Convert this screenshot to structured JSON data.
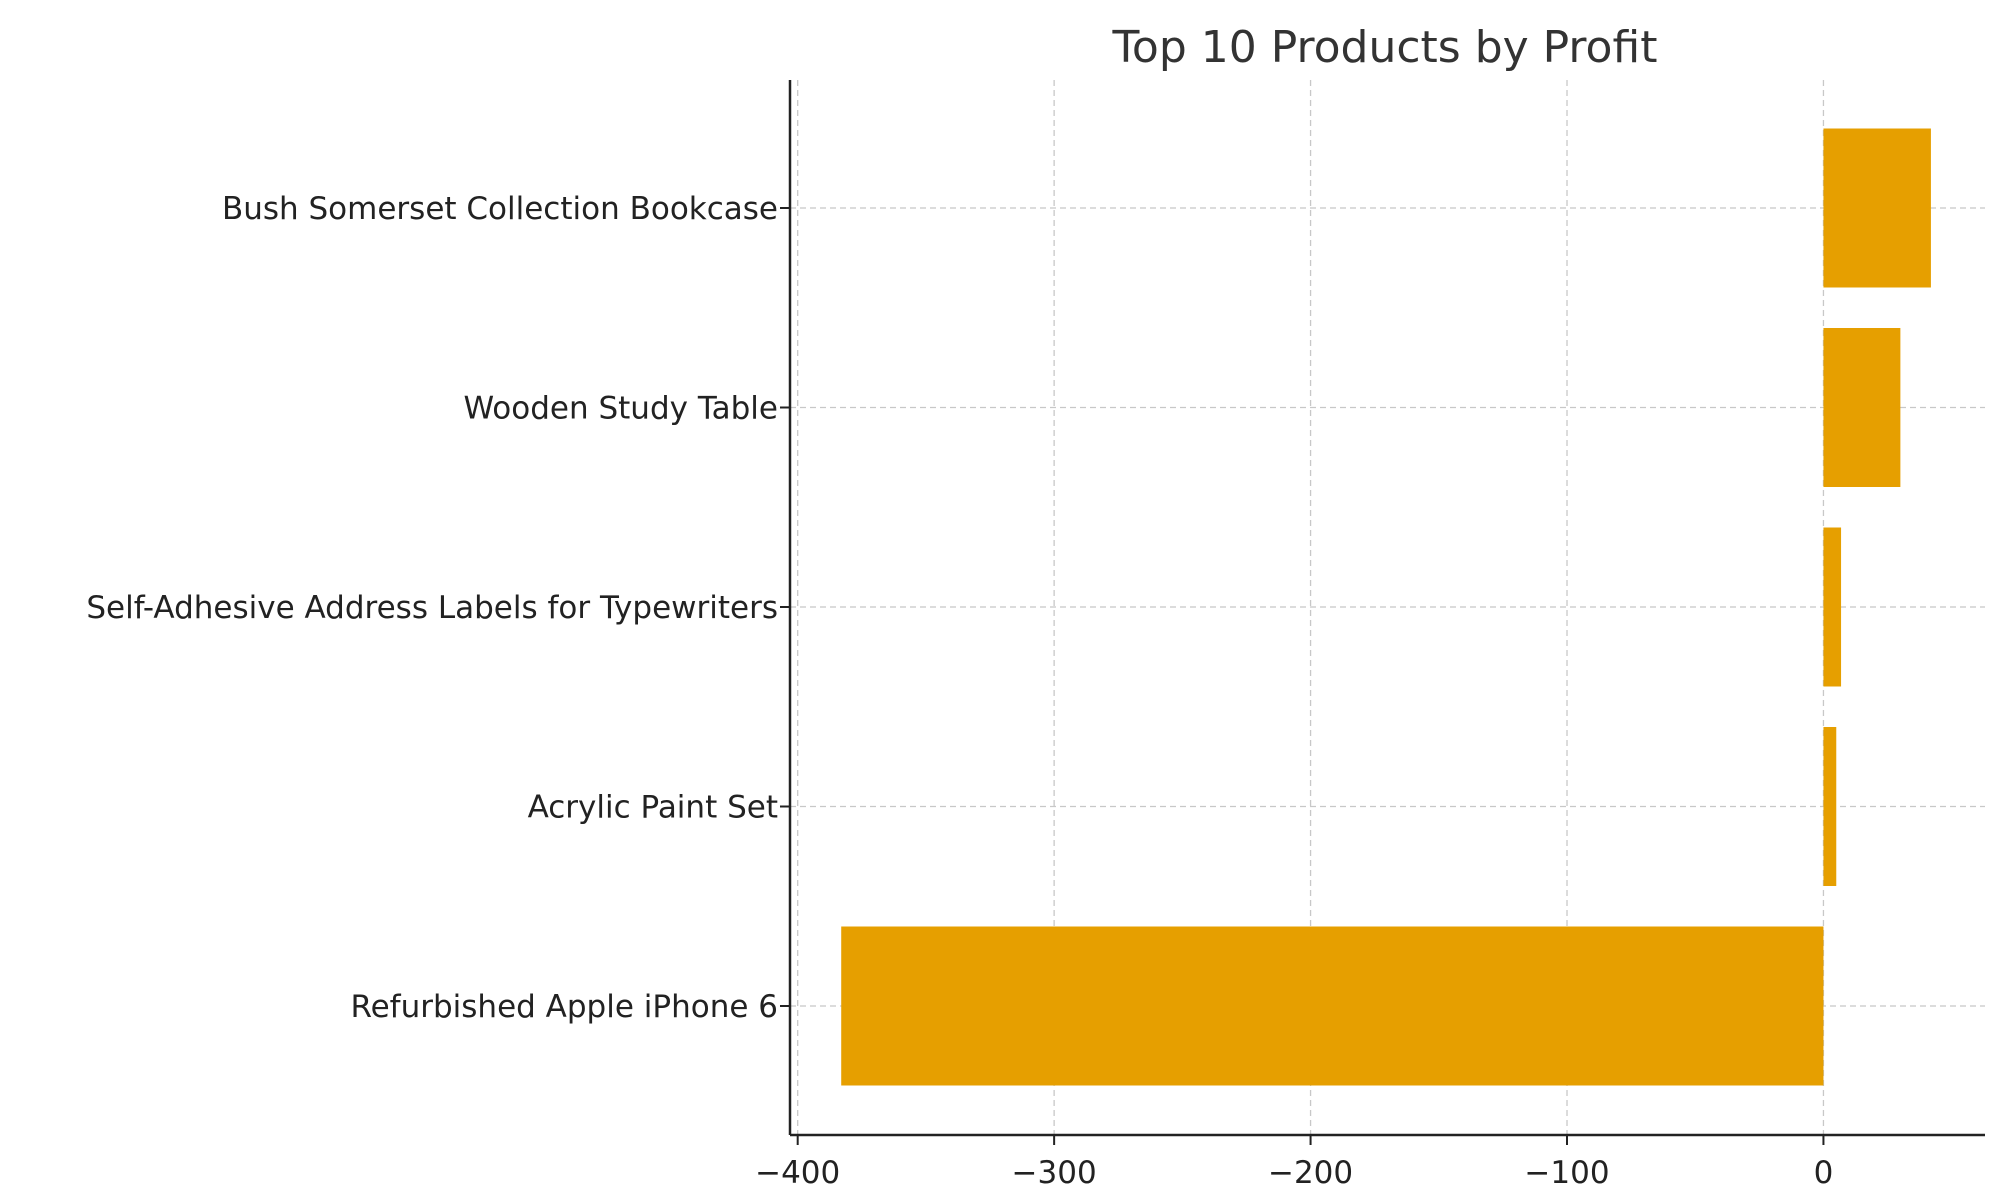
{
  "chart_data": {
    "type": "bar",
    "orientation": "horizontal",
    "title": "Top 10 Products by Profit",
    "xlabel": "",
    "ylabel": "",
    "categories": [
      "Bush Somerset Collection Bookcase",
      "Wooden Study Table",
      "Self-Adhesive Address Labels for Typewriters",
      "Acrylic Paint Set",
      "Refurbished Apple iPhone 6"
    ],
    "values": [
      41.91,
      30.0,
      6.87,
      5.0,
      -383.03
    ],
    "xlim": [
      -403,
      63
    ],
    "xticks": [
      -400,
      -300,
      -200,
      -100,
      0
    ],
    "xtick_labels": [
      "−400",
      "−300",
      "−200",
      "−100",
      "0"
    ],
    "grid": true,
    "legend": "none",
    "bar_color": "#E69F00"
  }
}
